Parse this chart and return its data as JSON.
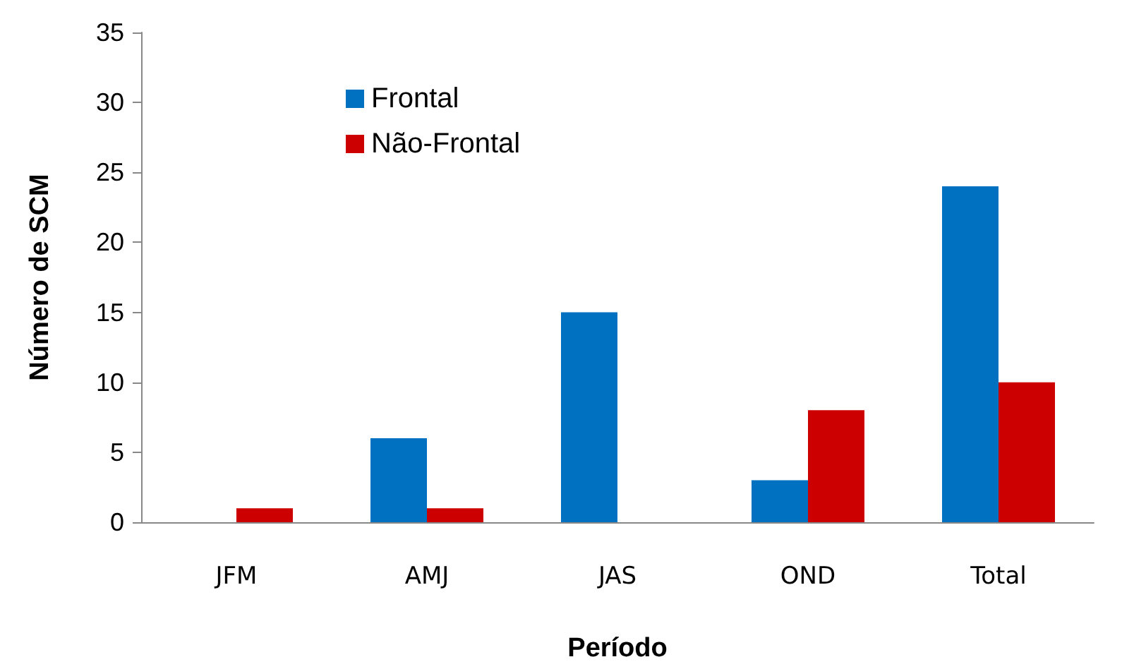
{
  "chart_data": {
    "type": "bar",
    "xlabel": "Período",
    "ylabel": "Número de SCM",
    "categories": [
      "JFM",
      "AMJ",
      "JAS",
      "OND",
      "Total"
    ],
    "series": [
      {
        "name": "Frontal",
        "color": "#0070c0",
        "values": [
          0,
          6,
          15,
          3,
          24
        ]
      },
      {
        "name": "Não-Frontal",
        "color": "#cc0000",
        "values": [
          1,
          1,
          0,
          8,
          10
        ]
      }
    ],
    "ylim": [
      0,
      35
    ],
    "yticks": [
      0,
      5,
      10,
      15,
      20,
      25,
      30,
      35
    ],
    "grid": false,
    "legend": "top left"
  }
}
